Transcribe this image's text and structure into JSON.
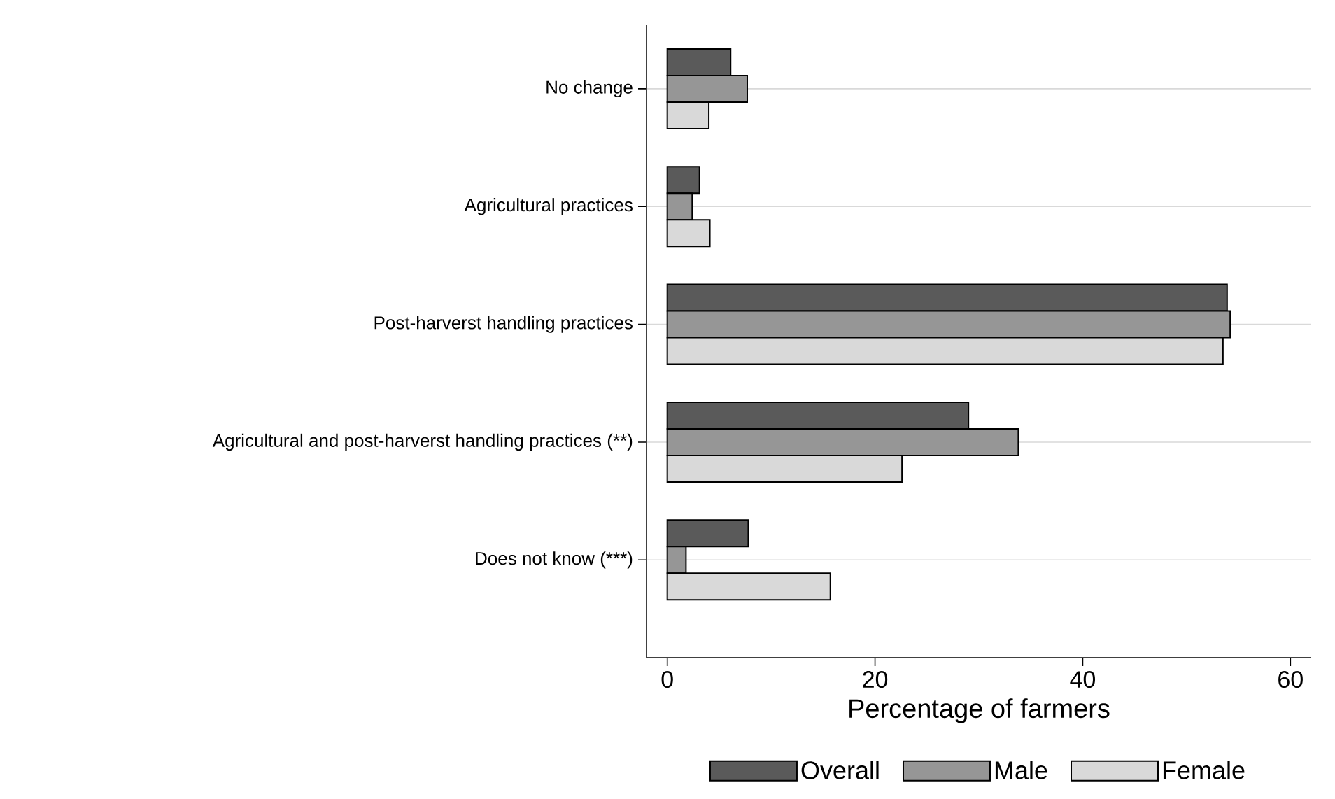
{
  "chart_data": {
    "type": "bar",
    "orientation": "horizontal",
    "categories": [
      "No change",
      "Agricultural practices",
      "Post-harverst handling practices",
      "Agricultural and post-harverst handling practices (**)",
      "Does not know (***)"
    ],
    "series": [
      {
        "name": "Overall",
        "color": "#5a5a5a",
        "values": [
          6.1,
          3.1,
          53.9,
          29.0,
          7.8
        ]
      },
      {
        "name": "Male",
        "color": "#969696",
        "values": [
          7.7,
          2.4,
          54.2,
          33.8,
          1.8
        ]
      },
      {
        "name": "Female",
        "color": "#d9d9d9",
        "values": [
          4.0,
          4.1,
          53.5,
          22.6,
          15.7
        ]
      }
    ],
    "xlabel": "Percentage of farmers",
    "xlim": [
      -2,
      62
    ],
    "xticks": [
      0,
      20,
      40,
      60
    ],
    "grid": "y",
    "legend": "bottom"
  }
}
